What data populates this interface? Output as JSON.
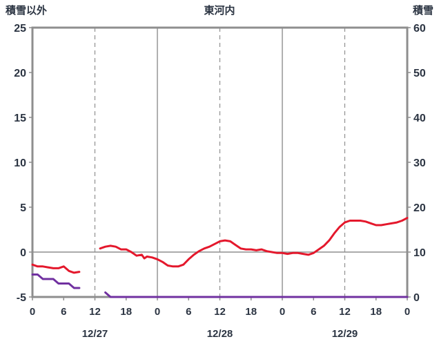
{
  "header": {
    "left_label": "積雪以外",
    "title": "東河内",
    "right_label": "積雪"
  },
  "chart_data": {
    "type": "line",
    "title": "東河内",
    "left_axis": {
      "label": "積雪以外",
      "min": -5,
      "max": 25,
      "ticks": [
        25,
        20,
        15,
        10,
        5,
        0,
        -5
      ]
    },
    "right_axis": {
      "label": "積雪",
      "min": 0,
      "max": 60,
      "ticks": [
        60,
        50,
        40,
        30,
        20,
        10,
        0
      ]
    },
    "x_axis": {
      "min": 0,
      "max": 72,
      "tick_interval_hours": 6,
      "hour_labels": [
        "0",
        "6",
        "12",
        "18",
        "0",
        "6",
        "12",
        "18",
        "0",
        "6",
        "12",
        "18",
        "0"
      ],
      "date_labels": [
        {
          "label": "12/27",
          "hour": 12
        },
        {
          "label": "12/28",
          "hour": 36
        },
        {
          "label": "12/29",
          "hour": 60
        }
      ]
    },
    "gridlines": {
      "solid_vertical_hours": [
        24,
        48
      ],
      "dashed_vertical_hours": [
        12,
        36,
        60
      ],
      "zero_line_left_value": 0
    },
    "colors": {
      "frame": "#8e8e8e",
      "grid": "#8e8e8e",
      "text": "#2b3442",
      "red": "#e4182c",
      "purple": "#7030a0"
    },
    "series": [
      {
        "name": "red-line",
        "axis": "left",
        "color": "#e4182c",
        "segments": [
          [
            [
              0,
              -1.4
            ],
            [
              1,
              -1.6
            ],
            [
              2,
              -1.6
            ],
            [
              3,
              -1.7
            ],
            [
              4,
              -1.8
            ],
            [
              5,
              -1.8
            ],
            [
              6,
              -1.6
            ],
            [
              7,
              -2.1
            ],
            [
              8,
              -2.3
            ],
            [
              9,
              -2.2
            ]
          ],
          [
            [
              13,
              0.4
            ],
            [
              14,
              0.6
            ],
            [
              15,
              0.7
            ],
            [
              16,
              0.6
            ],
            [
              17,
              0.3
            ],
            [
              18,
              0.3
            ],
            [
              19,
              0.0
            ],
            [
              20,
              -0.4
            ],
            [
              21,
              -0.3
            ],
            [
              21.5,
              -0.7
            ],
            [
              22,
              -0.5
            ],
            [
              23,
              -0.6
            ],
            [
              24,
              -0.8
            ],
            [
              25,
              -1.1
            ],
            [
              26,
              -1.5
            ],
            [
              27,
              -1.6
            ],
            [
              28,
              -1.6
            ],
            [
              29,
              -1.4
            ],
            [
              30,
              -0.8
            ],
            [
              31,
              -0.3
            ],
            [
              32,
              0.1
            ],
            [
              33,
              0.4
            ],
            [
              34,
              0.6
            ],
            [
              35,
              0.9
            ],
            [
              36,
              1.2
            ],
            [
              37,
              1.3
            ],
            [
              38,
              1.2
            ],
            [
              39,
              0.8
            ],
            [
              40,
              0.4
            ],
            [
              41,
              0.3
            ],
            [
              42,
              0.3
            ],
            [
              43,
              0.2
            ],
            [
              44,
              0.3
            ],
            [
              45,
              0.1
            ],
            [
              46,
              0.0
            ],
            [
              47,
              -0.1
            ],
            [
              48,
              -0.1
            ],
            [
              49,
              -0.2
            ],
            [
              50,
              -0.1
            ],
            [
              51,
              -0.1
            ],
            [
              52,
              -0.2
            ],
            [
              53,
              -0.3
            ],
            [
              54,
              -0.1
            ],
            [
              55,
              0.3
            ],
            [
              56,
              0.7
            ],
            [
              57,
              1.3
            ],
            [
              58,
              2.1
            ],
            [
              59,
              2.8
            ],
            [
              60,
              3.3
            ],
            [
              61,
              3.5
            ],
            [
              62,
              3.5
            ],
            [
              63,
              3.5
            ],
            [
              64,
              3.4
            ],
            [
              65,
              3.2
            ],
            [
              66,
              3.0
            ],
            [
              67,
              3.0
            ],
            [
              68,
              3.1
            ],
            [
              69,
              3.2
            ],
            [
              70,
              3.3
            ],
            [
              71,
              3.5
            ],
            [
              72,
              3.8
            ]
          ]
        ]
      },
      {
        "name": "purple-line",
        "axis": "right",
        "color": "#7030a0",
        "segments": [
          [
            [
              0,
              5
            ],
            [
              1,
              5
            ],
            [
              2,
              4
            ],
            [
              3,
              4
            ],
            [
              4,
              4
            ],
            [
              5,
              3
            ],
            [
              6,
              3
            ],
            [
              7,
              3
            ],
            [
              8,
              2
            ],
            [
              9,
              2
            ]
          ],
          [
            [
              14,
              1
            ],
            [
              15,
              0
            ],
            [
              18,
              0
            ],
            [
              24,
              0
            ],
            [
              30,
              0
            ],
            [
              36,
              0
            ],
            [
              42,
              0
            ],
            [
              48,
              0
            ],
            [
              54,
              0
            ],
            [
              60,
              0
            ],
            [
              66,
              0
            ],
            [
              72,
              0
            ]
          ]
        ]
      }
    ]
  }
}
